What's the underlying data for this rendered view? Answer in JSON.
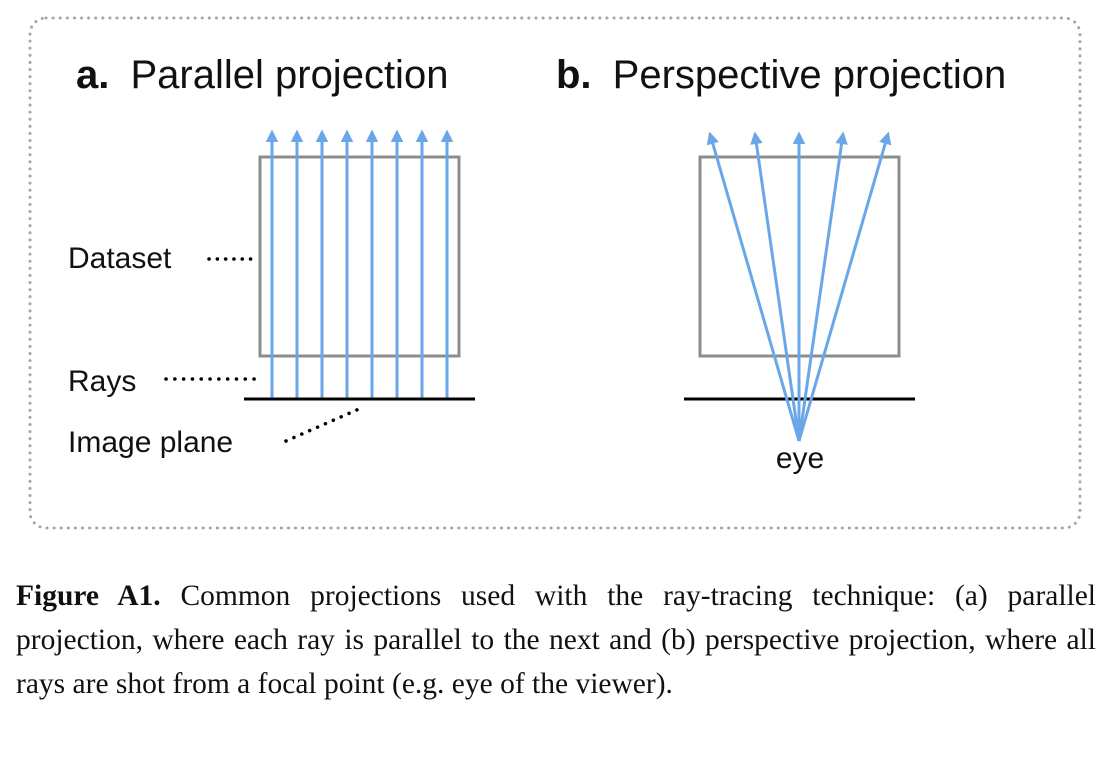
{
  "panel_a": {
    "letter": "a.",
    "title": "Parallel projection",
    "labels": {
      "dataset": "Dataset",
      "rays": "Rays",
      "image_plane": "Image plane"
    }
  },
  "panel_b": {
    "letter": "b.",
    "title": "Perspective projection",
    "labels": {
      "eye": "eye"
    }
  },
  "caption": {
    "label": "Figure A1.",
    "text": " Common projections used with the ray-tracing technique: (a) parallel projection, where each ray is parallel to the next and (b) perspective projection, where all rays are shot from a focal point (e.g. eye of the viewer)."
  },
  "colors": {
    "ray": "#6aa7e8",
    "box": "#8c8c8c",
    "plane": "#000000",
    "frame": "#a6a6a6"
  }
}
